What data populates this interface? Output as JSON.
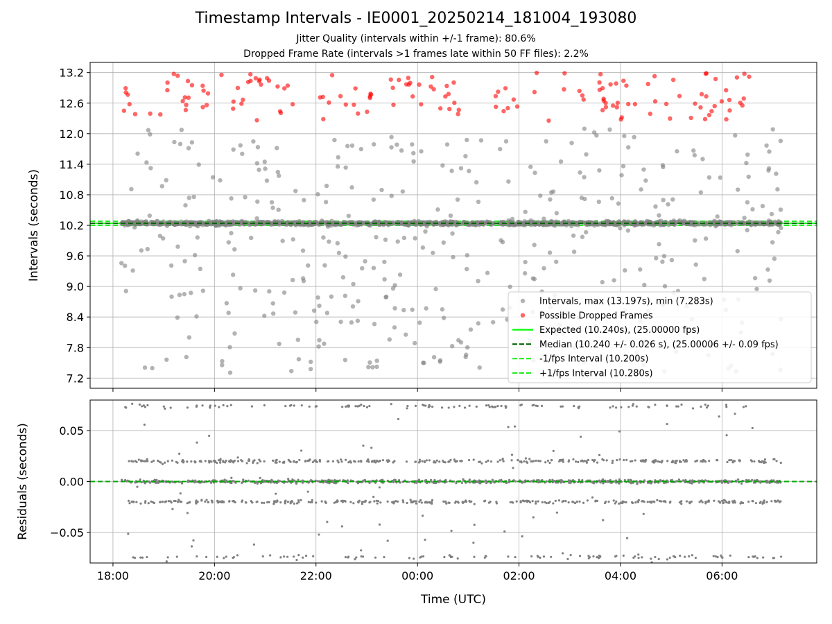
{
  "chart_data": [
    {
      "type": "scatter",
      "title": "Timestamp Intervals - IE0001_20250214_181004_193080",
      "subtitle": [
        "Jitter Quality (intervals within +/-1 frame): 80.6%",
        "Dropped Frame Rate (intervals >1 frames late within 50 FF files): 2.2%"
      ],
      "xlabel": "",
      "ylabel": "Intervals (seconds)",
      "xlim": [
        "17:33",
        "07:52"
      ],
      "ylim": [
        7.0,
        13.4
      ],
      "x_ticks": [
        "18:00",
        "20:00",
        "22:00",
        "00:00",
        "02:00",
        "04:00",
        "06:00"
      ],
      "y_ticks": [
        7.2,
        7.8,
        8.4,
        9.0,
        9.6,
        10.2,
        10.8,
        11.4,
        12.0,
        12.6,
        13.2
      ],
      "grid": true,
      "legend_position": "lower-right",
      "series": [
        {
          "name": "Intervals, max (13.197s), min (7.283s)",
          "marker": "circle",
          "color": "#808080",
          "x_range": [
            "18:10",
            "07:10"
          ],
          "y_min": 7.283,
          "y_max": 13.197,
          "main_cluster": 10.24
        },
        {
          "name": "Possible Dropped Frames",
          "marker": "circle",
          "color": "#ff0000",
          "y_range": [
            12.2,
            13.2
          ]
        },
        {
          "name": "Expected (10.240s), (25.00000 fps)",
          "line": "solid",
          "color": "#00ff00",
          "y": 10.24
        },
        {
          "name": "Median (10.240 +/- 0.026 s), (25.00006 +/- 0.09 fps)",
          "line": "dashed",
          "color": "#006400",
          "y": 10.24
        },
        {
          "name": "-1/fps Interval (10.200s)",
          "line": "dashed",
          "color": "#22ee22",
          "y": 10.2
        },
        {
          "name": "+1/fps Interval (10.280s)",
          "line": "dashed",
          "color": "#22ee22",
          "y": 10.28
        }
      ]
    },
    {
      "type": "scatter",
      "title": "",
      "xlabel": "Time (UTC)",
      "ylabel": "Residuals (seconds)",
      "xlim": [
        "17:33",
        "07:52"
      ],
      "ylim": [
        -0.08,
        0.08
      ],
      "x_ticks": [
        "18:00",
        "20:00",
        "22:00",
        "00:00",
        "02:00",
        "04:00",
        "06:00"
      ],
      "y_ticks": [
        "−0.05",
        "0.00",
        "0.05"
      ],
      "y_tick_values": [
        -0.05,
        0.0,
        0.05
      ],
      "grid": true,
      "series": [
        {
          "name": "",
          "marker": "point",
          "color": "#808080",
          "bands": [
            -0.074,
            -0.02,
            0.0,
            0.02,
            0.074
          ]
        },
        {
          "name": "",
          "line": "dashed",
          "color": "#00aa00",
          "y": 0.0
        }
      ]
    }
  ]
}
